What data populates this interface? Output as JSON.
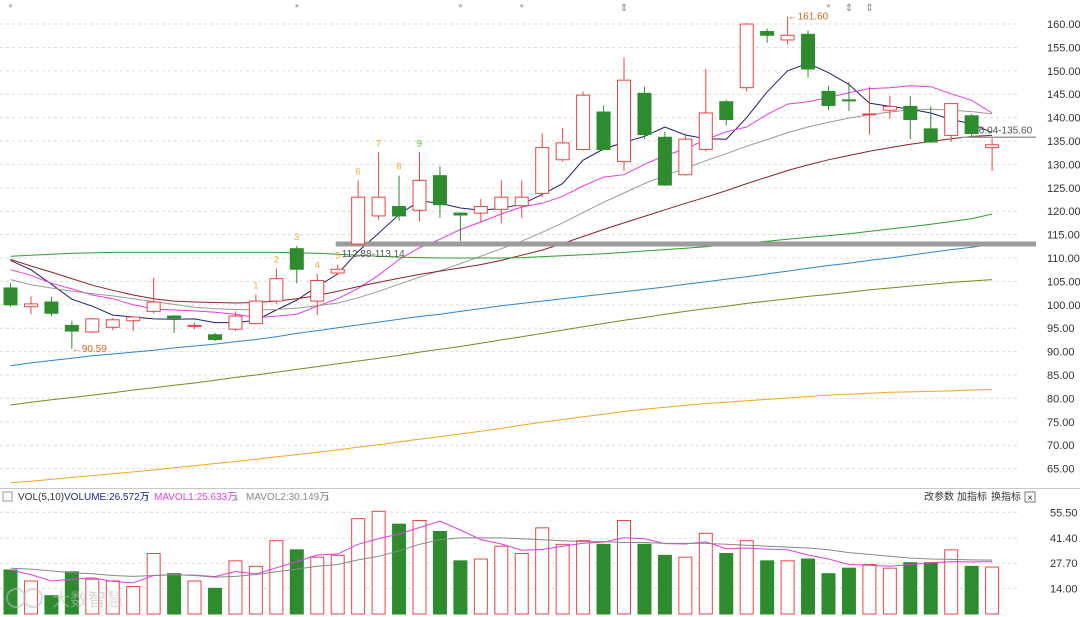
{
  "chart_data": [
    {
      "type": "candlestick",
      "ylim": [
        61.5,
        163.0
      ],
      "y_ticks": [
        "160.00",
        "155.00",
        "150.00",
        "145.00",
        "140.00",
        "135.00",
        "130.00",
        "125.00",
        "120.00",
        "115.00",
        "110.00",
        "105.00",
        "100.00",
        "95.00",
        "90.00",
        "85.00",
        "80.00",
        "75.00",
        "70.00",
        "65.00"
      ],
      "candles": [
        {
          "o": 103.6,
          "h": 104.6,
          "l": 99.6,
          "c": 100.0
        },
        {
          "o": 99.6,
          "h": 101.8,
          "l": 98.0,
          "c": 100.2
        },
        {
          "o": 100.6,
          "h": 101.7,
          "l": 97.6,
          "c": 98.2
        },
        {
          "o": 95.6,
          "h": 96.6,
          "l": 90.6,
          "c": 94.4
        },
        {
          "o": 94.2,
          "h": 97.2,
          "l": 94.0,
          "c": 97.0
        },
        {
          "o": 95.2,
          "h": 97.2,
          "l": 94.6,
          "c": 96.8
        },
        {
          "o": 96.6,
          "h": 97.6,
          "l": 94.4,
          "c": 97.4
        },
        {
          "o": 98.6,
          "h": 105.8,
          "l": 98.2,
          "c": 100.6
        },
        {
          "o": 97.6,
          "h": 97.8,
          "l": 94.0,
          "c": 97.2
        },
        {
          "o": 95.6,
          "h": 96.2,
          "l": 94.8,
          "c": 95.6
        },
        {
          "o": 93.6,
          "h": 94.0,
          "l": 92.2,
          "c": 92.6
        },
        {
          "o": 94.8,
          "h": 98.6,
          "l": 94.4,
          "c": 97.6
        },
        {
          "o": 96.0,
          "h": 102.2,
          "l": 95.8,
          "c": 100.8
        },
        {
          "o": 100.8,
          "h": 107.8,
          "l": 100.2,
          "c": 105.6
        },
        {
          "o": 112.0,
          "h": 112.6,
          "l": 104.6,
          "c": 107.6
        },
        {
          "o": 100.8,
          "h": 106.6,
          "l": 97.8,
          "c": 105.2
        },
        {
          "o": 106.8,
          "h": 108.6,
          "l": 106.4,
          "c": 107.6
        },
        {
          "o": 113.0,
          "h": 126.6,
          "l": 112.8,
          "c": 123.0
        },
        {
          "o": 119.0,
          "h": 132.6,
          "l": 118.2,
          "c": 123.0
        },
        {
          "o": 121.0,
          "h": 127.6,
          "l": 118.0,
          "c": 119.0
        },
        {
          "o": 120.2,
          "h": 132.6,
          "l": 117.8,
          "c": 126.6
        },
        {
          "o": 127.6,
          "h": 129.6,
          "l": 118.6,
          "c": 121.4
        },
        {
          "o": 119.6,
          "h": 119.8,
          "l": 113.6,
          "c": 119.2
        },
        {
          "o": 119.6,
          "h": 122.6,
          "l": 117.6,
          "c": 121.0
        },
        {
          "o": 120.4,
          "h": 126.6,
          "l": 117.4,
          "c": 123.0
        },
        {
          "o": 121.2,
          "h": 126.6,
          "l": 118.6,
          "c": 123.0
        },
        {
          "o": 123.8,
          "h": 136.6,
          "l": 123.0,
          "c": 133.6
        },
        {
          "o": 131.0,
          "h": 137.8,
          "l": 130.6,
          "c": 134.6
        },
        {
          "o": 133.2,
          "h": 145.6,
          "l": 133.0,
          "c": 144.8
        },
        {
          "o": 141.2,
          "h": 142.6,
          "l": 133.0,
          "c": 133.2
        },
        {
          "o": 130.6,
          "h": 152.8,
          "l": 128.6,
          "c": 148.0
        },
        {
          "o": 145.2,
          "h": 146.6,
          "l": 135.4,
          "c": 136.4
        },
        {
          "o": 135.8,
          "h": 137.0,
          "l": 125.4,
          "c": 125.6
        },
        {
          "o": 127.8,
          "h": 136.6,
          "l": 127.6,
          "c": 135.4
        },
        {
          "o": 133.2,
          "h": 150.4,
          "l": 132.8,
          "c": 141.0
        },
        {
          "o": 143.4,
          "h": 143.8,
          "l": 138.4,
          "c": 139.6
        },
        {
          "o": 146.4,
          "h": 160.2,
          "l": 145.6,
          "c": 160.0
        },
        {
          "o": 158.4,
          "h": 159.0,
          "l": 156.0,
          "c": 157.6
        },
        {
          "o": 156.6,
          "h": 161.6,
          "l": 155.6,
          "c": 157.6
        },
        {
          "o": 157.8,
          "h": 158.6,
          "l": 148.6,
          "c": 150.4
        },
        {
          "o": 145.6,
          "h": 146.8,
          "l": 141.6,
          "c": 142.6
        },
        {
          "o": 143.8,
          "h": 147.6,
          "l": 141.4,
          "c": 143.6
        },
        {
          "o": 140.8,
          "h": 146.6,
          "l": 136.4,
          "c": 140.8
        },
        {
          "o": 141.6,
          "h": 144.6,
          "l": 139.8,
          "c": 142.4
        },
        {
          "o": 142.4,
          "h": 144.6,
          "l": 135.4,
          "c": 139.6
        },
        {
          "o": 137.6,
          "h": 142.4,
          "l": 134.6,
          "c": 134.8
        },
        {
          "o": 136.2,
          "h": 142.6,
          "l": 134.8,
          "c": 143.0
        },
        {
          "o": 140.4,
          "h": 140.8,
          "l": 136.0,
          "c": 136.6
        },
        {
          "o": 133.6,
          "h": 135.6,
          "l": 128.6,
          "c": 134.2
        }
      ],
      "moving_averages": [
        {
          "color": "#1f1f6e",
          "values": [
            109.5,
            107.5,
            104.4,
            101.2,
            99.7,
            97.8,
            97.4,
            97.0,
            96.9,
            97.0,
            96.2,
            96.2,
            96.7,
            98.9,
            101.0,
            103.9,
            106.6,
            111.4,
            115.3,
            119.3,
            122.2,
            121.7,
            120.7,
            120.2,
            120.6,
            121.5,
            123.6,
            125.9,
            130.9,
            133.3,
            134.7,
            136.0,
            138.0,
            136.3,
            135.5,
            135.4,
            140.0,
            145.5,
            150.0,
            151.6,
            149.6,
            147.1,
            143.1,
            142.4,
            141.8,
            141.0,
            139.6,
            138.7,
            136.8
          ]
        },
        {
          "color": "#e23ee0",
          "values": [
            107.5,
            106.3,
            104.6,
            103.4,
            102.1,
            101.3,
            100.0,
            99.1,
            98.9,
            98.7,
            98.4,
            98.0,
            97.3,
            97.6,
            98.0,
            99.7,
            101.3,
            103.5,
            106.3,
            109.7,
            112.2,
            114.0,
            116.1,
            117.7,
            119.4,
            120.9,
            121.7,
            123.2,
            125.4,
            127.3,
            127.8,
            130.0,
            131.9,
            133.3,
            135.3,
            137.0,
            138.0,
            140.7,
            142.9,
            143.4,
            144.3,
            145.3,
            146.2,
            146.4,
            146.8,
            146.6,
            145.1,
            143.7,
            141.0
          ]
        },
        {
          "color": "#999999",
          "values": [
            105.4,
            104.3,
            103.6,
            102.9,
            102.4,
            101.9,
            101.3,
            100.7,
            100.1,
            99.5,
            99.2,
            99.0,
            98.9,
            99.0,
            99.3,
            99.8,
            100.4,
            101.5,
            102.9,
            104.4,
            105.9,
            107.3,
            108.8,
            110.4,
            112.0,
            113.6,
            115.5,
            117.5,
            119.7,
            121.9,
            123.9,
            125.9,
            127.6,
            129.2,
            130.8,
            132.3,
            133.9,
            135.3,
            136.8,
            138.0,
            139.0,
            139.9,
            140.6,
            141.2,
            141.7,
            141.8,
            141.6,
            141.3,
            140.8
          ]
        },
        {
          "color": "#8b2323",
          "values": [
            109.7,
            108.3,
            107.0,
            105.6,
            104.2,
            103.1,
            102.1,
            101.3,
            100.8,
            100.6,
            100.5,
            100.4,
            100.5,
            100.8,
            101.3,
            102.0,
            102.9,
            103.9,
            104.8,
            105.7,
            106.5,
            107.2,
            107.9,
            108.6,
            109.5,
            110.6,
            111.7,
            113.1,
            114.6,
            116.1,
            117.5,
            118.9,
            120.3,
            121.7,
            123.0,
            124.4,
            125.9,
            127.3,
            128.7,
            129.9,
            131.0,
            131.9,
            132.8,
            133.6,
            134.3,
            134.9,
            135.5,
            136.0,
            136.2
          ]
        },
        {
          "color": "#2e9e2e",
          "values": [
            110.4,
            110.6,
            110.8,
            111.0,
            111.1,
            111.2,
            111.2,
            111.2,
            111.2,
            111.2,
            111.2,
            111.2,
            111.2,
            111.2,
            111.1,
            111.0,
            110.8,
            110.6,
            110.4,
            110.2,
            110.1,
            110.0,
            110.0,
            110.0,
            110.0,
            110.1,
            110.3,
            110.5,
            110.7,
            110.9,
            111.2,
            111.5,
            111.8,
            112.1,
            112.4,
            112.8,
            113.2,
            113.6,
            114.0,
            114.4,
            114.8,
            115.2,
            115.7,
            116.2,
            116.7,
            117.2,
            117.8,
            118.4,
            119.4
          ]
        },
        {
          "color": "#2f86c9",
          "values": [
            87.0,
            87.6,
            88.1,
            88.6,
            89.1,
            89.5,
            89.9,
            90.3,
            90.8,
            91.2,
            91.6,
            92.1,
            92.6,
            93.2,
            93.9,
            94.5,
            95.1,
            95.7,
            96.3,
            96.9,
            97.5,
            98.0,
            98.6,
            99.2,
            99.8,
            100.3,
            100.8,
            101.3,
            101.8,
            102.3,
            102.8,
            103.3,
            103.8,
            104.4,
            104.9,
            105.5,
            106.0,
            106.6,
            107.2,
            107.8,
            108.4,
            108.9,
            109.5,
            110.0,
            110.6,
            111.2,
            111.8,
            112.3,
            112.9
          ]
        },
        {
          "color": "#7a8a1e",
          "values": [
            78.6,
            79.2,
            79.7,
            80.2,
            80.7,
            81.2,
            81.8,
            82.3,
            82.8,
            83.3,
            83.9,
            84.5,
            85.0,
            85.6,
            86.2,
            86.8,
            87.4,
            88.0,
            88.6,
            89.2,
            89.9,
            90.5,
            91.1,
            91.8,
            92.5,
            93.2,
            93.9,
            94.6,
            95.3,
            96.0,
            96.7,
            97.3,
            98.0,
            98.6,
            99.2,
            99.7,
            100.3,
            100.8,
            101.3,
            101.8,
            102.2,
            102.7,
            103.2,
            103.6,
            104.0,
            104.4,
            104.8,
            105.1,
            105.4
          ]
        },
        {
          "color": "#f5a623",
          "values": [
            62.0,
            62.3,
            62.7,
            63.1,
            63.5,
            63.9,
            64.3,
            64.7,
            65.2,
            65.6,
            66.1,
            66.5,
            67.0,
            67.5,
            68.0,
            68.5,
            69.0,
            69.6,
            70.1,
            70.7,
            71.3,
            71.8,
            72.4,
            73.0,
            73.6,
            74.3,
            74.9,
            75.5,
            76.1,
            76.6,
            77.2,
            77.7,
            78.1,
            78.5,
            78.9,
            79.2,
            79.5,
            79.8,
            80.1,
            80.4,
            80.7,
            80.9,
            81.1,
            81.3,
            81.4,
            81.5,
            81.6,
            81.8,
            81.9
          ]
        }
      ],
      "support_line": {
        "value": 113.0,
        "from_index": 16,
        "color": "#9c9c9c",
        "label": "112.88-113.14"
      },
      "resistance_line": {
        "value": 135.8,
        "from_index": 47,
        "color": "#9c9c9c",
        "label": "136.04-135.60"
      },
      "annotations": {
        "low": {
          "label": "90.59",
          "index": 3,
          "value": 90.59
        },
        "high": {
          "label": "161.60",
          "index": 38,
          "value": 161.6
        }
      },
      "sequence_marks": [
        {
          "label": "1",
          "index": 12,
          "color": "#f5a623"
        },
        {
          "label": "2",
          "index": 13,
          "color": "#f5a623"
        },
        {
          "label": "3",
          "index": 14,
          "color": "#f5a623"
        },
        {
          "label": "4",
          "index": 15,
          "color": "#f5a623"
        },
        {
          "label": "5",
          "index": 16,
          "color": "#f5a623"
        },
        {
          "label": "6",
          "index": 17,
          "color": "#f5a623"
        },
        {
          "label": "7",
          "index": 18,
          "color": "#f5a623"
        },
        {
          "label": "8",
          "index": 19,
          "color": "#f5a623"
        },
        {
          "label": "9",
          "index": 20,
          "color": "#22cc22"
        }
      ],
      "top_event_marks": [
        {
          "glyph": "*",
          "index": 0
        },
        {
          "glyph": "*",
          "index": 14
        },
        {
          "glyph": "*",
          "index": 22
        },
        {
          "glyph": "*",
          "index": 25
        },
        {
          "glyph": "⇕",
          "index": 30
        },
        {
          "glyph": "*",
          "index": 40
        },
        {
          "glyph": "⇕",
          "index": 41
        },
        {
          "glyph": "⇕",
          "index": 42
        }
      ],
      "colors": {
        "up": "#e84545",
        "down": "#2e8b2e",
        "grid": "#dcdcdc"
      }
    },
    {
      "type": "bar",
      "legend": {
        "name": "VOL(5,10)",
        "volume": "VOLUME:26.572万",
        "volume_arrow": "↑",
        "mavol1": "MAVOL1:25.633万",
        "mavol1_arrow": "↓",
        "mavol2": "MAVOL2:30.149万",
        "mavol2_arrow": "↓",
        "colors": {
          "volume": "#1a2a8a",
          "mavol1": "#e23ee0",
          "mavol2": "#888888",
          "up_arrow": "#1a2a8a",
          "down_arrow": "#2e8b2e"
        }
      },
      "ylim": [
        0,
        60
      ],
      "y_ticks": [
        "55.50",
        "41.40",
        "27.70",
        "14.00"
      ],
      "values": [
        24.0,
        18.0,
        10.0,
        23.0,
        19.0,
        18.0,
        15.0,
        33.0,
        22.0,
        18.0,
        14.0,
        29.0,
        26.0,
        40.0,
        35.0,
        31.0,
        32.0,
        52.0,
        56.0,
        49.0,
        51.0,
        45.0,
        29.0,
        30.0,
        37.0,
        33.0,
        47.0,
        38.0,
        40.0,
        38.0,
        51.0,
        38.0,
        32.0,
        31.0,
        44.0,
        33.0,
        40.0,
        29.0,
        29.0,
        30.0,
        22.0,
        25.0,
        27.0,
        25.0,
        28.0,
        28.0,
        35.0,
        26.0,
        25.6
      ],
      "mavol1": [
        24.0,
        21.5,
        18.0,
        19.0,
        19.8,
        17.8,
        17.0,
        21.0,
        21.4,
        21.2,
        20.4,
        23.2,
        21.8,
        25.2,
        28.6,
        32.2,
        32.8,
        38.0,
        41.2,
        43.6,
        47.2,
        50.6,
        45.8,
        40.6,
        38.2,
        34.8,
        35.2,
        37.0,
        38.6,
        39.2,
        41.6,
        41.0,
        38.4,
        38.2,
        39.4,
        35.6,
        36.0,
        35.4,
        35.0,
        32.2,
        30.0,
        27.0,
        26.6,
        26.0,
        27.0,
        28.0,
        28.6,
        28.4,
        28.6
      ],
      "mavol2": [
        25.0,
        24.5,
        23.5,
        22.5,
        22.0,
        21.0,
        20.5,
        21.0,
        21.5,
        21.0,
        20.0,
        20.5,
        21.5,
        23.0,
        24.5,
        26.0,
        27.0,
        29.5,
        31.5,
        34.5,
        38.0,
        40.5,
        41.5,
        41.5,
        41.5,
        41.0,
        40.5,
        40.0,
        39.5,
        39.5,
        39.0,
        39.0,
        38.5,
        38.5,
        38.5,
        38.0,
        37.5,
        37.0,
        36.5,
        36.0,
        35.0,
        33.5,
        32.5,
        31.5,
        30.5,
        30.0,
        29.8,
        29.5,
        29.4
      ],
      "buttons": {
        "params": "改参数",
        "add_indicator": "加指标",
        "switch_indicator": "换指标",
        "close": "×"
      }
    }
  ],
  "watermark": {
    "text": "大数智慧"
  }
}
